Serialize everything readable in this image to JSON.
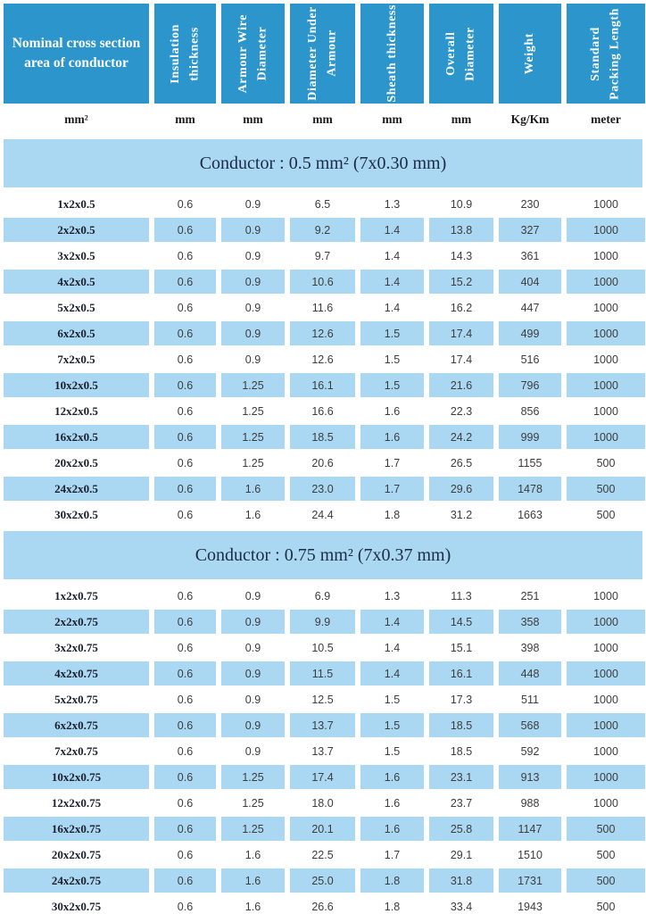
{
  "colors": {
    "header_bg": "#2c95cc",
    "stripe_bg": "#aad7f1",
    "header_text": "#ffffff",
    "label_text": "#1b1f2e",
    "number_text": "#3d3d3d",
    "title_text": "#1c2b49"
  },
  "header": {
    "columns": [
      {
        "label": "Nominal cross section\narea of conductor",
        "unit": "mm²"
      },
      {
        "label": "Insulation\nthickness",
        "unit": "mm"
      },
      {
        "label": "Armour Wire\nDiameter",
        "unit": "mm"
      },
      {
        "label": "Diameter Under\nArmour",
        "unit": "mm"
      },
      {
        "label": "Sheath thickness",
        "unit": "mm"
      },
      {
        "label": "Overall\nDiameter",
        "unit": "mm"
      },
      {
        "label": "Weight",
        "unit": "Kg/Km"
      },
      {
        "label": "Standard\nPacking Length",
        "unit": "meter"
      }
    ]
  },
  "sections": [
    {
      "title": "Conductor : 0.5 mm² (7x0.30 mm)",
      "rows": [
        [
          "1x2x0.5",
          "0.6",
          "0.9",
          "6.5",
          "1.3",
          "10.9",
          "230",
          "1000"
        ],
        [
          "2x2x0.5",
          "0.6",
          "0.9",
          "9.2",
          "1.4",
          "13.8",
          "327",
          "1000"
        ],
        [
          "3x2x0.5",
          "0.6",
          "0.9",
          "9.7",
          "1.4",
          "14.3",
          "361",
          "1000"
        ],
        [
          "4x2x0.5",
          "0.6",
          "0.9",
          "10.6",
          "1.4",
          "15.2",
          "404",
          "1000"
        ],
        [
          "5x2x0.5",
          "0.6",
          "0.9",
          "11.6",
          "1.4",
          "16.2",
          "447",
          "1000"
        ],
        [
          "6x2x0.5",
          "0.6",
          "0.9",
          "12.6",
          "1.5",
          "17.4",
          "499",
          "1000"
        ],
        [
          "7x2x0.5",
          "0.6",
          "0.9",
          "12.6",
          "1.5",
          "17.4",
          "516",
          "1000"
        ],
        [
          "10x2x0.5",
          "0.6",
          "1.25",
          "16.1",
          "1.5",
          "21.6",
          "796",
          "1000"
        ],
        [
          "12x2x0.5",
          "0.6",
          "1.25",
          "16.6",
          "1.6",
          "22.3",
          "856",
          "1000"
        ],
        [
          "16x2x0.5",
          "0.6",
          "1.25",
          "18.5",
          "1.6",
          "24.2",
          "999",
          "1000"
        ],
        [
          "20x2x0.5",
          "0.6",
          "1.25",
          "20.6",
          "1.7",
          "26.5",
          "1155",
          "500"
        ],
        [
          "24x2x0.5",
          "0.6",
          "1.6",
          "23.0",
          "1.7",
          "29.6",
          "1478",
          "500"
        ],
        [
          "30x2x0.5",
          "0.6",
          "1.6",
          "24.4",
          "1.8",
          "31.2",
          "1663",
          "500"
        ]
      ]
    },
    {
      "title": "Conductor : 0.75 mm² (7x0.37 mm)",
      "rows": [
        [
          "1x2x0.75",
          "0.6",
          "0.9",
          "6.9",
          "1.3",
          "11.3",
          "251",
          "1000"
        ],
        [
          "2x2x0.75",
          "0.6",
          "0.9",
          "9.9",
          "1.4",
          "14.5",
          "358",
          "1000"
        ],
        [
          "3x2x0.75",
          "0.6",
          "0.9",
          "10.5",
          "1.4",
          "15.1",
          "398",
          "1000"
        ],
        [
          "4x2x0.75",
          "0.6",
          "0.9",
          "11.5",
          "1.4",
          "16.1",
          "448",
          "1000"
        ],
        [
          "5x2x0.75",
          "0.6",
          "0.9",
          "12.5",
          "1.5",
          "17.3",
          "511",
          "1000"
        ],
        [
          "6x2x0.75",
          "0.6",
          "0.9",
          "13.7",
          "1.5",
          "18.5",
          "568",
          "1000"
        ],
        [
          "7x2x0.75",
          "0.6",
          "0.9",
          "13.7",
          "1.5",
          "18.5",
          "592",
          "1000"
        ],
        [
          "10x2x0.75",
          "0.6",
          "1.25",
          "17.4",
          "1.6",
          "23.1",
          "913",
          "1000"
        ],
        [
          "12x2x0.75",
          "0.6",
          "1.25",
          "18.0",
          "1.6",
          "23.7",
          "988",
          "1000"
        ],
        [
          "16x2x0.75",
          "0.6",
          "1.25",
          "20.1",
          "1.6",
          "25.8",
          "1147",
          "500"
        ],
        [
          "20x2x0.75",
          "0.6",
          "1.6",
          "22.5",
          "1.7",
          "29.1",
          "1510",
          "500"
        ],
        [
          "24x2x0.75",
          "0.6",
          "1.6",
          "25.0",
          "1.8",
          "31.8",
          "1731",
          "500"
        ],
        [
          "30x2x0.75",
          "0.6",
          "1.6",
          "26.6",
          "1.8",
          "33.4",
          "1943",
          "500"
        ]
      ]
    }
  ]
}
